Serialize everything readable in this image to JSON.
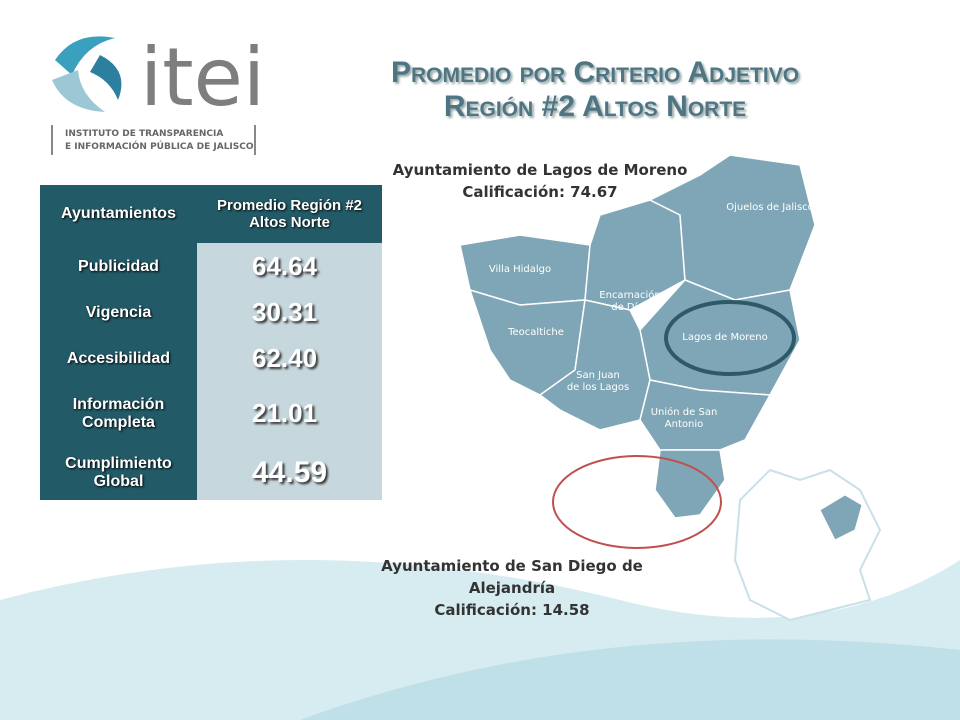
{
  "logo": {
    "name": "itei",
    "line1": "INSTITUTO DE TRANSPARENCIA",
    "line2": "E INFORMACIÓN PÚBLICA DE JALISCO"
  },
  "title": {
    "line1": "Promedio por Criterio Adjetivo",
    "line2": "Región #2 Altos Norte"
  },
  "table": {
    "header": [
      "Ayuntamientos",
      "Promedio Región #2 Altos Norte"
    ],
    "rows": [
      [
        "Publicidad",
        "64.64"
      ],
      [
        "Vigencia",
        "30.31"
      ],
      [
        "Accesibilidad",
        "62.40"
      ],
      [
        "Información Completa",
        "21.01"
      ],
      [
        "Cumplimiento Global",
        "44.59"
      ]
    ]
  },
  "map": {
    "labels": [
      [
        "Villa Hidalgo"
      ],
      [
        "Encarnación",
        "de Díaz"
      ],
      [
        "Ojuelos de Jalisco"
      ],
      [
        "Teocaltiche"
      ],
      [
        "Lagos de Moreno"
      ],
      [
        "San Juan",
        "de los Lagos"
      ],
      [
        "Unión de San",
        "Antonio"
      ],
      [
        "San Diego",
        "de Alejandría"
      ]
    ]
  },
  "annotations": [
    {
      "lines": [
        "Ayuntamiento de Lagos de Moreno",
        "Calificación: 74.67"
      ]
    },
    {
      "lines": [
        "Ayuntamiento de San Diego de",
        "Alejandría",
        "Calificación: 14.58"
      ]
    }
  ]
}
